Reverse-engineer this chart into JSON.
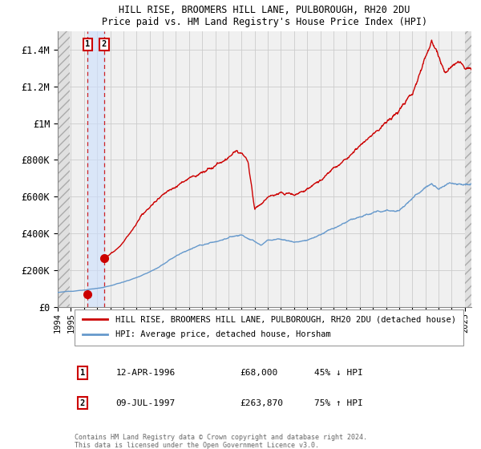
{
  "title1": "HILL RISE, BROOMERS HILL LANE, PULBOROUGH, RH20 2DU",
  "title2": "Price paid vs. HM Land Registry's House Price Index (HPI)",
  "ylim": [
    0,
    1500000
  ],
  "xlim_start": 1994.0,
  "xlim_end": 2025.5,
  "yticks": [
    0,
    200000,
    400000,
    600000,
    800000,
    1000000,
    1200000,
    1400000
  ],
  "ytick_labels": [
    "£0",
    "£200K",
    "£400K",
    "£600K",
    "£800K",
    "£1M",
    "£1.2M",
    "£1.4M"
  ],
  "xticks": [
    1994,
    1995,
    1996,
    1997,
    1998,
    1999,
    2000,
    2001,
    2002,
    2003,
    2004,
    2005,
    2006,
    2007,
    2008,
    2009,
    2010,
    2011,
    2012,
    2013,
    2014,
    2015,
    2016,
    2017,
    2018,
    2019,
    2020,
    2021,
    2022,
    2023,
    2024,
    2025
  ],
  "sale1_x": 1996.28,
  "sale1_y": 68000,
  "sale1_label": "1",
  "sale1_date": "12-APR-1996",
  "sale1_price": "£68,000",
  "sale1_hpi": "45% ↓ HPI",
  "sale2_x": 1997.53,
  "sale2_y": 263870,
  "sale2_label": "2",
  "sale2_date": "09-JUL-1997",
  "sale2_price": "£263,870",
  "sale2_hpi": "75% ↑ HPI",
  "line1_color": "#cc0000",
  "line2_color": "#6699cc",
  "bg_color": "#f0f0f0",
  "grid_color": "#cccccc",
  "legend1_label": "HILL RISE, BROOMERS HILL LANE, PULBOROUGH, RH20 2DU (detached house)",
  "legend2_label": "HPI: Average price, detached house, Horsham",
  "footer": "Contains HM Land Registry data © Crown copyright and database right 2024.\nThis data is licensed under the Open Government Licence v3.0."
}
